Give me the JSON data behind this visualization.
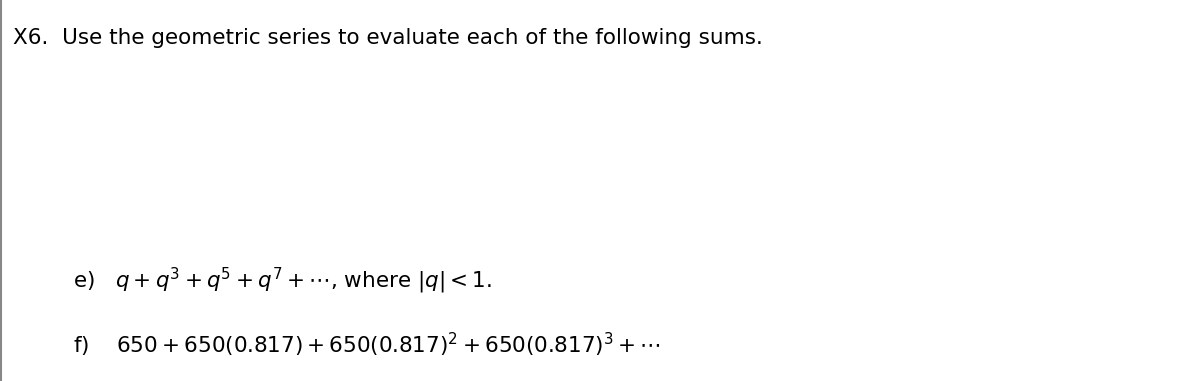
{
  "title": "X6.  Use the geometric series to evaluate each of the following sums.",
  "line_e": "e)   $q + q^3 + q^5 + q^7 + \\cdots$, where $|q| < 1.$",
  "line_f": "f)    $650 + 650(0.817) + 650(0.817)^2 + 650(0.817)^3 + \\cdots$",
  "background_color": "#ffffff",
  "text_color": "#000000",
  "title_fontsize": 15.5,
  "body_fontsize": 15.5,
  "fig_width": 12.0,
  "fig_height": 3.81,
  "dpi": 100,
  "border_color": "#888888",
  "border_linewidth": 1.5
}
